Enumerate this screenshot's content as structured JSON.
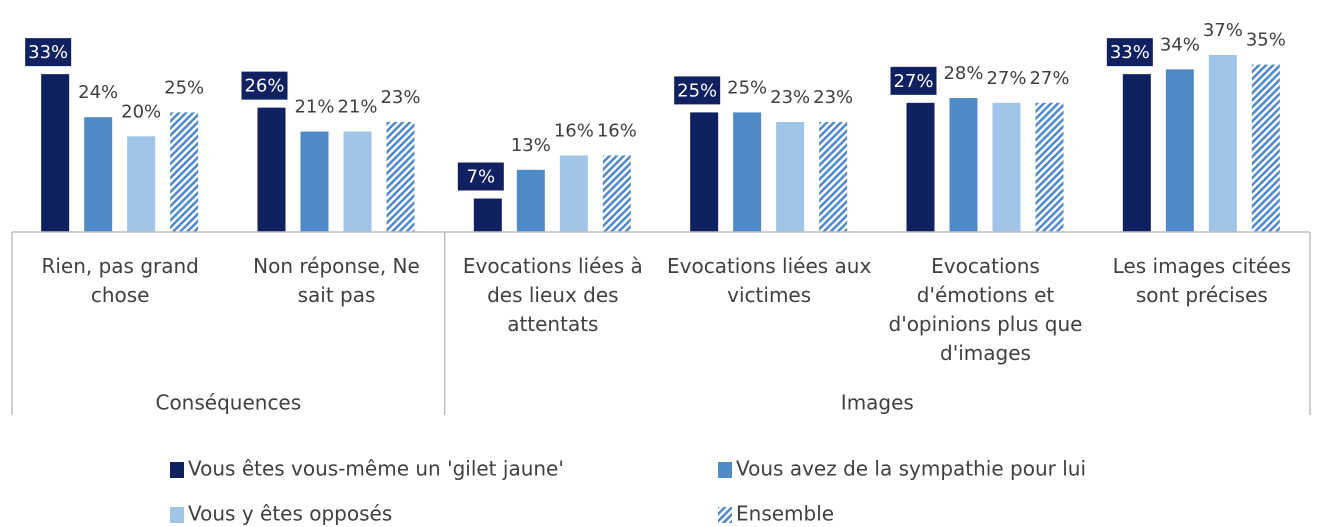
{
  "chart_data": {
    "type": "grouped_bar",
    "groups": [
      {
        "label": "Conséquences",
        "categories": [
          "Rien, pas grand chose",
          "Non réponse, Ne sait pas"
        ]
      },
      {
        "label": "Images",
        "categories": [
          "Evocations liées à des lieux des attentats",
          "Evocations liées aux victimes",
          "Evocations d'émotions et d'opinions plus que d'images",
          "Les images citées sont précises"
        ]
      }
    ],
    "series": [
      {
        "name": "Vous êtes vous-même un 'gilet jaune'",
        "color": "#0f2160",
        "values": [
          33,
          26,
          7,
          25,
          27,
          33
        ],
        "value_labels": [
          "33%",
          "26%",
          "7%",
          "25%",
          "27%",
          "33%"
        ]
      },
      {
        "name": "Vous avez de la sympathie pour lui",
        "color": "#4e8ac8",
        "values": [
          24,
          21,
          13,
          25,
          28,
          34
        ],
        "value_labels": [
          "24%",
          "21%",
          "13%",
          "25%",
          "28%",
          "34%"
        ]
      },
      {
        "name": "Vous y êtes opposés",
        "color": "#9fc4e8",
        "values": [
          20,
          21,
          16,
          23,
          27,
          37
        ],
        "value_labels": [
          "20%",
          "21%",
          "16%",
          "23%",
          "27%",
          "37%"
        ]
      },
      {
        "name": "Ensemble",
        "color": "#4e8ac8",
        "pattern": "hatch",
        "values": [
          25,
          23,
          16,
          23,
          27,
          35
        ],
        "value_labels": [
          "25%",
          "23%",
          "16%",
          "23%",
          "27%",
          "35%"
        ]
      }
    ]
  }
}
